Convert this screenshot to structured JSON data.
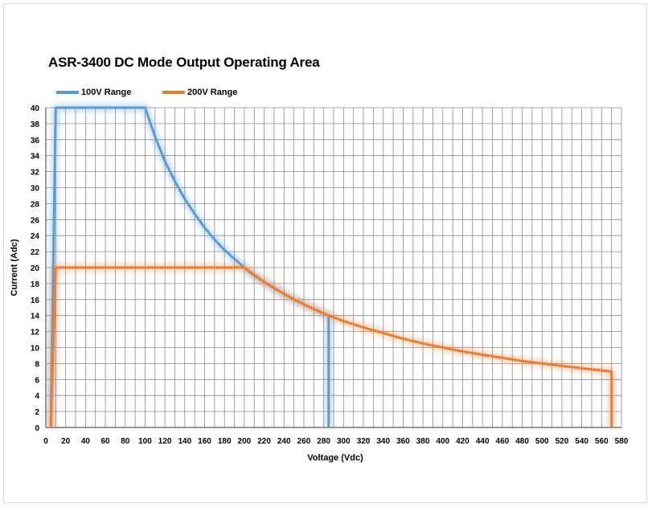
{
  "chart_data": {
    "type": "line",
    "title": "ASR-3400 DC Mode Output Operating Area",
    "xlabel": "Voltage (Vdc)",
    "ylabel": "Current (Adc)",
    "xlim": [
      0,
      580
    ],
    "ylim": [
      0,
      40
    ],
    "x_ticks": [
      0,
      20,
      40,
      60,
      80,
      100,
      120,
      140,
      160,
      180,
      200,
      220,
      240,
      260,
      280,
      300,
      320,
      340,
      360,
      380,
      400,
      420,
      440,
      460,
      480,
      500,
      520,
      540,
      560,
      580
    ],
    "y_ticks": [
      0,
      2,
      4,
      6,
      8,
      10,
      12,
      14,
      16,
      18,
      20,
      22,
      24,
      26,
      28,
      30,
      32,
      34,
      36,
      38,
      40
    ],
    "grid": true,
    "legend": "top-left",
    "series": [
      {
        "name": "100V Range",
        "color": "#5b9bd5",
        "points": [
          [
            5,
            0
          ],
          [
            10,
            40
          ],
          [
            100,
            40
          ],
          [
            110,
            36.4
          ],
          [
            120,
            33.3
          ],
          [
            130,
            30.8
          ],
          [
            140,
            28.6
          ],
          [
            150,
            26.7
          ],
          [
            160,
            25
          ],
          [
            170,
            23.5
          ],
          [
            180,
            22.2
          ],
          [
            190,
            21.1
          ],
          [
            200,
            20
          ],
          [
            210,
            19
          ],
          [
            220,
            18.2
          ],
          [
            230,
            17.4
          ],
          [
            240,
            16.7
          ],
          [
            250,
            16
          ],
          [
            260,
            15.4
          ],
          [
            270,
            14.8
          ],
          [
            285,
            14
          ],
          [
            285,
            0
          ]
        ]
      },
      {
        "name": "200V Range",
        "color": "#ed7d31",
        "points": [
          [
            5,
            0
          ],
          [
            10,
            20
          ],
          [
            200,
            20
          ],
          [
            220,
            18.2
          ],
          [
            240,
            16.7
          ],
          [
            260,
            15.4
          ],
          [
            285,
            14
          ],
          [
            300,
            13.3
          ],
          [
            320,
            12.5
          ],
          [
            340,
            11.8
          ],
          [
            360,
            11.1
          ],
          [
            380,
            10.5
          ],
          [
            400,
            10
          ],
          [
            420,
            9.5
          ],
          [
            440,
            9.1
          ],
          [
            460,
            8.7
          ],
          [
            480,
            8.3
          ],
          [
            500,
            8
          ],
          [
            520,
            7.7
          ],
          [
            540,
            7.4
          ],
          [
            570,
            7
          ],
          [
            570,
            0
          ]
        ]
      }
    ]
  }
}
